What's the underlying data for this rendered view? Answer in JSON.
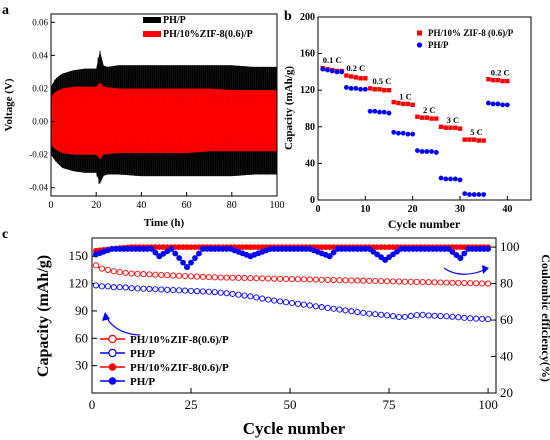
{
  "figure": {
    "panel_labels": [
      "a",
      "b",
      "c"
    ]
  },
  "chart_data": [
    {
      "panel": "a",
      "type": "line",
      "xlabel": "Time (h)",
      "ylabel": "Voltage (V)",
      "xlim": [
        0,
        100
      ],
      "ylim": [
        -0.045,
        0.065
      ],
      "xticks": [
        0,
        20,
        40,
        60,
        80,
        100
      ],
      "yticks": [
        -0.04,
        -0.02,
        0.0,
        0.02,
        0.04,
        0.06
      ],
      "ytick_labels": [
        "-0.04",
        "-0.02",
        "0.00",
        "0.02",
        "0.04",
        "0.06"
      ],
      "legend_position": "top-right",
      "series": [
        {
          "name": "PH/P",
          "color": "#000000",
          "x": [
            0,
            2,
            5,
            10,
            15,
            20,
            21.5,
            22,
            23,
            25,
            30,
            40,
            50,
            60,
            70,
            80,
            90,
            100
          ],
          "upper": [
            0.021,
            0.026,
            0.029,
            0.031,
            0.032,
            0.032,
            0.044,
            0.04,
            0.034,
            0.033,
            0.034,
            0.034,
            0.034,
            0.034,
            0.034,
            0.034,
            0.033,
            0.033
          ],
          "lower": [
            -0.02,
            -0.024,
            -0.028,
            -0.03,
            -0.031,
            -0.031,
            -0.039,
            -0.035,
            -0.033,
            -0.032,
            -0.032,
            -0.033,
            -0.033,
            -0.033,
            -0.033,
            -0.033,
            -0.032,
            -0.032
          ]
        },
        {
          "name": "PH/10%ZIF-8(0.6)/P",
          "color": "#ff0000",
          "x": [
            0,
            2,
            5,
            10,
            20,
            22,
            23,
            30,
            40,
            50,
            60,
            70,
            80,
            90,
            100
          ],
          "upper": [
            0.015,
            0.018,
            0.02,
            0.021,
            0.021,
            0.024,
            0.021,
            0.02,
            0.02,
            0.02,
            0.02,
            0.02,
            0.019,
            0.019,
            0.019
          ],
          "lower": [
            -0.014,
            -0.017,
            -0.019,
            -0.02,
            -0.02,
            -0.023,
            -0.02,
            -0.019,
            -0.019,
            -0.019,
            -0.019,
            -0.018,
            -0.018,
            -0.018,
            -0.018
          ]
        }
      ]
    },
    {
      "panel": "b",
      "type": "scatter",
      "xlabel": "Cycle number",
      "ylabel": "Capacity (mAh/g)",
      "xlim": [
        0,
        45
      ],
      "ylim": [
        0,
        200
      ],
      "xticks": [
        0,
        10,
        20,
        30,
        40
      ],
      "yticks": [
        0,
        40,
        80,
        120,
        160,
        200
      ],
      "legend_position": "top-right",
      "rate_labels": [
        {
          "text": "0.1 C",
          "x": 3.0,
          "y": 150
        },
        {
          "text": "0.2 C",
          "x": 8.0,
          "y": 141
        },
        {
          "text": "0.5 C",
          "x": 13.5,
          "y": 127
        },
        {
          "text": "1 C",
          "x": 18.5,
          "y": 110
        },
        {
          "text": "2 C",
          "x": 23.5,
          "y": 95
        },
        {
          "text": "3 C",
          "x": 28.5,
          "y": 84
        },
        {
          "text": "5 C",
          "x": 33.5,
          "y": 71
        },
        {
          "text": "0.2 C",
          "x": 38.5,
          "y": 136
        }
      ],
      "series": [
        {
          "name": "PH/10% ZIF-8 (0.6)/P",
          "color": "#ff0000",
          "marker": "square",
          "x": [
            1,
            2,
            3,
            4,
            5,
            6,
            7,
            8,
            9,
            10,
            11,
            12,
            13,
            14,
            15,
            16,
            17,
            18,
            19,
            20,
            21,
            22,
            23,
            24,
            25,
            26,
            27,
            28,
            29,
            30,
            31,
            32,
            33,
            34,
            35,
            36,
            37,
            38,
            39,
            40
          ],
          "y": [
            144,
            143,
            142,
            141,
            141,
            136,
            135,
            134,
            133,
            133,
            122,
            121,
            121,
            120,
            120,
            107,
            106,
            105,
            105,
            104,
            91,
            90,
            90,
            89,
            89,
            80,
            79,
            79,
            79,
            78,
            66,
            66,
            66,
            65,
            65,
            132,
            131,
            131,
            130,
            130
          ]
        },
        {
          "name": "PH/P",
          "color": "#0000ff",
          "marker": "circle",
          "x": [
            1,
            2,
            3,
            4,
            5,
            6,
            7,
            8,
            9,
            10,
            11,
            12,
            13,
            14,
            15,
            16,
            17,
            18,
            19,
            20,
            21,
            22,
            23,
            24,
            25,
            26,
            27,
            28,
            29,
            30,
            31,
            32,
            33,
            34,
            35,
            36,
            37,
            38,
            39,
            40
          ],
          "y": [
            143,
            142,
            141,
            140,
            140,
            123,
            122,
            122,
            121,
            121,
            97,
            97,
            96,
            96,
            95,
            74,
            73,
            73,
            72,
            72,
            54,
            53,
            53,
            53,
            52,
            24,
            23,
            23,
            23,
            22,
            7,
            6,
            6,
            6,
            6,
            106,
            105,
            105,
            104,
            104
          ]
        }
      ]
    },
    {
      "panel": "c",
      "type": "scatter",
      "xlabel": "Cycle number",
      "ylabel": "Capacity (mAh/g)",
      "y2label": "Coulombic efficiency(%)",
      "xlim": [
        0,
        102
      ],
      "ylim": [
        0,
        170
      ],
      "y2lim": [
        20,
        105
      ],
      "xticks": [
        0,
        25,
        50,
        75,
        100
      ],
      "yticks": [
        30,
        60,
        90,
        120,
        150
      ],
      "y2ticks": [
        20,
        40,
        60,
        80,
        100
      ],
      "legend_position": "bottom-left",
      "series": [
        {
          "name": "PH/10%ZIF-8(0.6)/P",
          "axis": "left",
          "marker": "open-circle",
          "color": "#ff0000",
          "x": [
            1,
            2,
            3,
            4,
            5,
            6,
            8,
            10,
            15,
            20,
            25,
            30,
            40,
            50,
            60,
            70,
            80,
            90,
            100
          ],
          "y": [
            140,
            137,
            136,
            135,
            134,
            133,
            132,
            131,
            130,
            129,
            128,
            127,
            126,
            125,
            124,
            123,
            122,
            121,
            120
          ]
        },
        {
          "name": "PH/P",
          "axis": "left",
          "marker": "open-circle",
          "color": "#0000ff",
          "x": [
            1,
            2,
            3,
            4,
            5,
            6,
            8,
            10,
            15,
            20,
            25,
            30,
            35,
            40,
            45,
            50,
            55,
            60,
            65,
            70,
            75,
            78,
            80,
            83,
            85,
            90,
            95,
            100
          ],
          "y": [
            118,
            117,
            117,
            117,
            116,
            116,
            116,
            115,
            114,
            113,
            112,
            111,
            109,
            106,
            102,
            99,
            96,
            93,
            90,
            87,
            85,
            83,
            84,
            86,
            85,
            84,
            82,
            81
          ]
        },
        {
          "name": "PH/10%ZIF-8(0.6)/P",
          "axis": "right",
          "marker": "filled-circle",
          "color": "#ff0000",
          "x": [
            1,
            5,
            10,
            20,
            30,
            40,
            50,
            60,
            70,
            80,
            90,
            100
          ],
          "y": [
            98,
            99,
            100,
            100,
            100,
            100,
            100,
            100,
            100,
            100,
            100,
            100
          ]
        },
        {
          "name": "PH/P",
          "axis": "right",
          "marker": "filled-circle",
          "color": "#0000ff",
          "x": [
            1,
            5,
            10,
            15,
            17,
            20,
            24,
            28,
            35,
            40,
            45,
            50,
            55,
            60,
            62,
            65,
            70,
            74,
            78,
            85,
            90,
            93,
            95,
            100
          ],
          "y": [
            96,
            99,
            99,
            99,
            95,
            99,
            89,
            99,
            99,
            95,
            99,
            99,
            99,
            95,
            99,
            99,
            99,
            93,
            99,
            99,
            99,
            94,
            99,
            99
          ]
        }
      ]
    }
  ]
}
